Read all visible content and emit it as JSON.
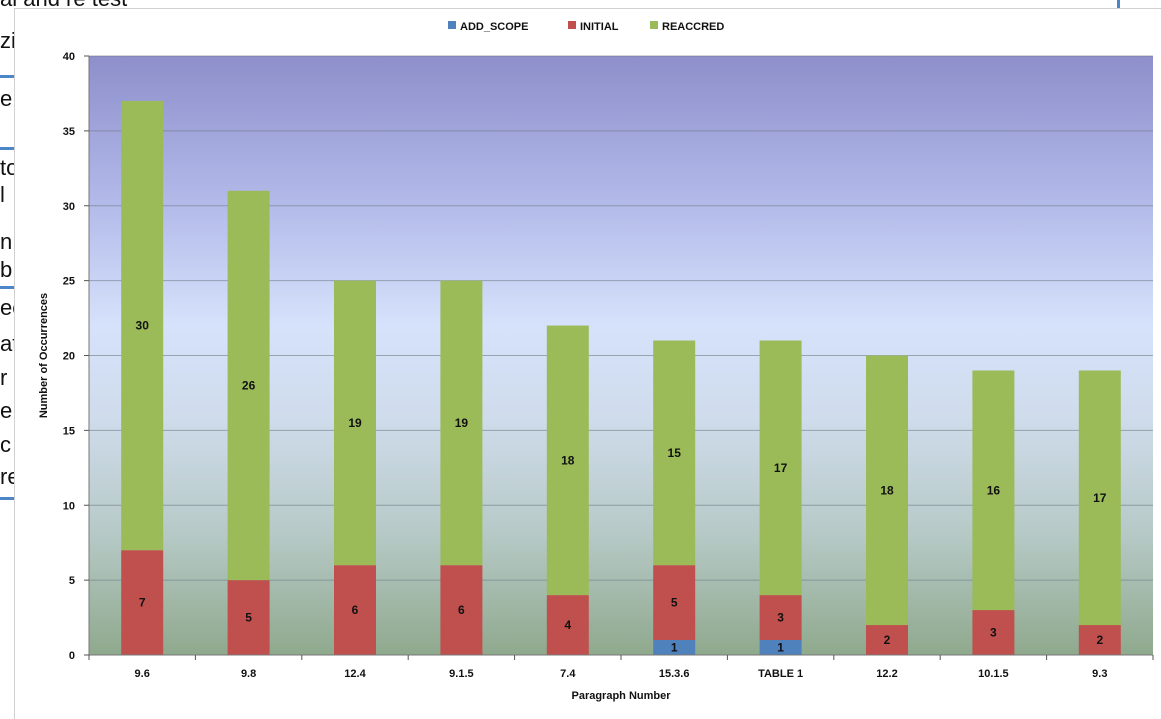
{
  "background_doc": {
    "lines": [
      "al and re test",
      "zi",
      "e",
      "to",
      "l",
      "n",
      "b",
      "ec",
      "at",
      "r",
      "e",
      "c",
      "re"
    ]
  },
  "chart_data": {
    "type": "bar",
    "stacked": true,
    "categories": [
      "9.6",
      "9.8",
      "12.4",
      "9.1.5",
      "7.4",
      "15.3.6",
      "TABLE 1",
      "12.2",
      "10.1.5",
      "9.3"
    ],
    "series": [
      {
        "name": "ADD_SCOPE",
        "color": "#4f81bd",
        "values": [
          0,
          0,
          0,
          0,
          0,
          1,
          1,
          0,
          0,
          0
        ]
      },
      {
        "name": "INITIAL",
        "color": "#c0504d",
        "values": [
          7,
          5,
          6,
          6,
          4,
          5,
          3,
          2,
          3,
          2
        ]
      },
      {
        "name": "REACCRED",
        "color": "#9bbb59",
        "values": [
          30,
          26,
          19,
          19,
          18,
          15,
          17,
          18,
          16,
          17
        ]
      }
    ],
    "title": "",
    "xlabel": "Paragraph Number",
    "ylabel": "Number of Occurrences",
    "ylim": [
      0,
      40
    ],
    "yticks": [
      0,
      5,
      10,
      15,
      20,
      25,
      30,
      35,
      40
    ],
    "grid": true,
    "legend_position": "top"
  }
}
